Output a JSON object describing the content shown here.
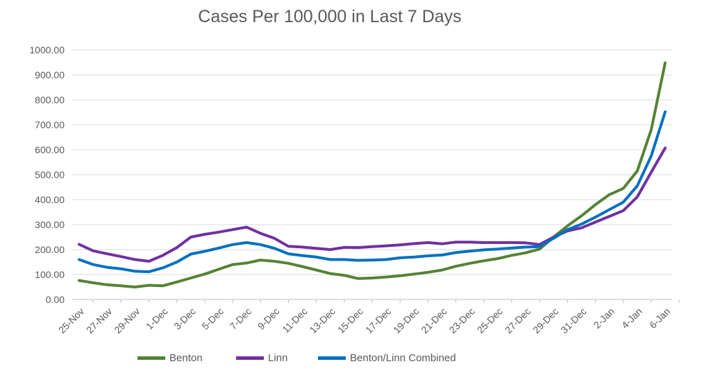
{
  "chart_data": {
    "type": "line",
    "title": "Cases Per 100,000 in Last 7 Days",
    "xlabel": "",
    "ylabel": "",
    "ylim": [
      0,
      1000
    ],
    "y_ticks": [
      "0.00",
      "100.00",
      "200.00",
      "300.00",
      "400.00",
      "500.00",
      "600.00",
      "700.00",
      "800.00",
      "900.00",
      "1000.00"
    ],
    "x_tick_labels": [
      "25-Nov",
      "27-Nov",
      "29-Nov",
      "1-Dec",
      "3-Dec",
      "5-Dec",
      "7-Dec",
      "9-Dec",
      "11-Dec",
      "13-Dec",
      "15-Dec",
      "17-Dec",
      "19-Dec",
      "21-Dec",
      "23-Dec",
      "25-Dec",
      "27-Dec",
      "29-Dec",
      "31-Dec",
      "2-Jan",
      "4-Jan",
      "6-Jan"
    ],
    "x": [
      "25-Nov",
      "26-Nov",
      "27-Nov",
      "28-Nov",
      "29-Nov",
      "30-Nov",
      "1-Dec",
      "2-Dec",
      "3-Dec",
      "4-Dec",
      "5-Dec",
      "6-Dec",
      "7-Dec",
      "8-Dec",
      "9-Dec",
      "10-Dec",
      "11-Dec",
      "12-Dec",
      "13-Dec",
      "14-Dec",
      "15-Dec",
      "16-Dec",
      "17-Dec",
      "18-Dec",
      "19-Dec",
      "20-Dec",
      "21-Dec",
      "22-Dec",
      "23-Dec",
      "24-Dec",
      "25-Dec",
      "26-Dec",
      "27-Dec",
      "28-Dec",
      "29-Dec",
      "30-Dec",
      "31-Dec",
      "1-Jan",
      "2-Jan",
      "3-Jan",
      "4-Jan",
      "5-Jan",
      "6-Jan"
    ],
    "grid": true,
    "legend_position": "bottom",
    "series": [
      {
        "name": "Benton",
        "color": "#548235",
        "values": [
          76,
          67,
          59,
          55,
          50,
          57,
          55,
          70,
          86,
          102,
          121,
          140,
          146,
          158,
          153,
          145,
          132,
          118,
          104,
          97,
          84,
          86,
          90,
          95,
          102,
          109,
          118,
          133,
          145,
          155,
          164,
          177,
          187,
          202,
          250,
          295,
          335,
          380,
          420,
          445,
          515,
          680,
          948
        ]
      },
      {
        "name": "Linn",
        "color": "#7030A0",
        "values": [
          221,
          195,
          183,
          172,
          160,
          153,
          177,
          208,
          250,
          261,
          270,
          280,
          290,
          265,
          245,
          213,
          210,
          205,
          200,
          209,
          208,
          212,
          215,
          219,
          224,
          228,
          223,
          230,
          230,
          228,
          228,
          228,
          227,
          220,
          250,
          275,
          287,
          310,
          333,
          356,
          411,
          510,
          607
        ]
      },
      {
        "name": "Benton/Linn Combined",
        "color": "#0070C0",
        "values": [
          160,
          140,
          129,
          123,
          113,
          111,
          127,
          150,
          182,
          193,
          206,
          220,
          228,
          220,
          205,
          183,
          176,
          170,
          160,
          160,
          157,
          158,
          160,
          167,
          170,
          175,
          178,
          188,
          194,
          199,
          202,
          206,
          210,
          212,
          245,
          280,
          302,
          330,
          360,
          390,
          455,
          575,
          752
        ]
      }
    ]
  }
}
